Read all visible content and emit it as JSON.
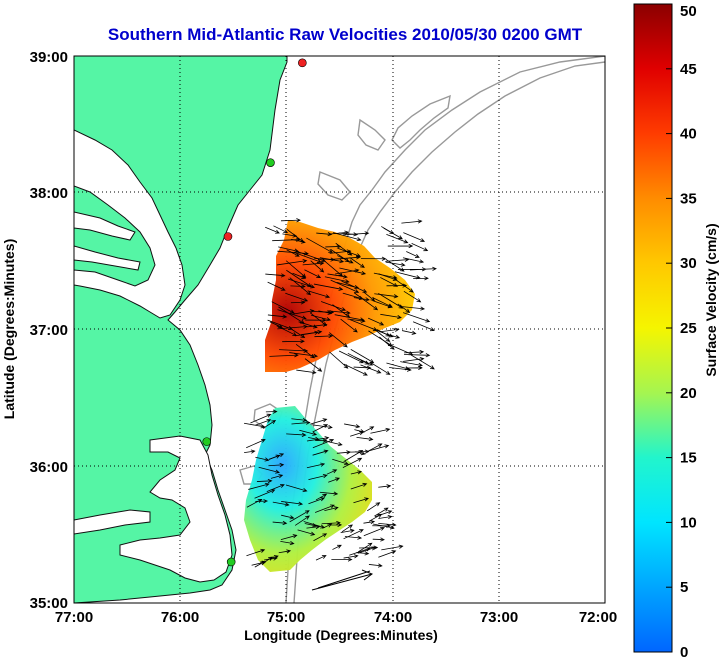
{
  "title": "Southern Mid-Atlantic Raw Velocities 2010/05/30 0200 GMT",
  "colors": {
    "land": "#55f5a5",
    "title": "#0000cc",
    "station_active": "#22cc22",
    "station_inactive": "#ee2222",
    "coast": "#111111",
    "bathymetry": "#999999",
    "grid": "#000000"
  },
  "axes": {
    "xlabel": "Longitude (Degrees:Minutes)",
    "ylabel": "Latitude (Degrees:Minutes)",
    "xticks": [
      "77:00",
      "76:00",
      "75:00",
      "74:00",
      "73:00",
      "72:00"
    ],
    "yticks": [
      "39:00",
      "38:00",
      "37:00",
      "36:00",
      "35:00"
    ],
    "xlim": [
      -77,
      -72
    ],
    "ylim": [
      35,
      39
    ],
    "grid": "dotted"
  },
  "colorbar": {
    "label": "Surface Velocity (cm/s)",
    "ticks": [
      "50",
      "45",
      "40",
      "35",
      "30",
      "25",
      "20",
      "15",
      "10",
      "5",
      "0"
    ],
    "range": [
      0,
      50
    ],
    "colormap": "jet"
  },
  "chart_data": {
    "type": "map",
    "title": "Southern Mid-Atlantic Raw Velocities 2010/05/30 0200 GMT",
    "xlabel": "Longitude (Degrees:Minutes)",
    "ylabel": "Latitude (Degrees:Minutes)",
    "x_range": [
      -77,
      -72
    ],
    "y_range": [
      35,
      39
    ],
    "stations": [
      {
        "lon": -74.85,
        "lat": 38.95,
        "status": "inactive"
      },
      {
        "lon": -75.15,
        "lat": 38.22,
        "status": "active"
      },
      {
        "lon": -75.55,
        "lat": 37.68,
        "status": "inactive"
      },
      {
        "lon": -75.75,
        "lat": 36.18,
        "status": "active"
      },
      {
        "lon": -75.52,
        "lat": 35.3,
        "status": "active"
      }
    ],
    "velocity_regions": [
      {
        "name": "northern field",
        "lon_range": [
          -75.2,
          -73.8
        ],
        "lat_range": [
          36.7,
          37.8
        ],
        "speed_range_cms": [
          25,
          48
        ]
      },
      {
        "name": "southern field",
        "lon_range": [
          -75.4,
          -74.1
        ],
        "lat_range": [
          35.25,
          36.4
        ],
        "speed_range_cms": [
          5,
          28
        ]
      }
    ],
    "reference_vector": {
      "lon": -74.6,
      "lat": 35.22
    }
  }
}
